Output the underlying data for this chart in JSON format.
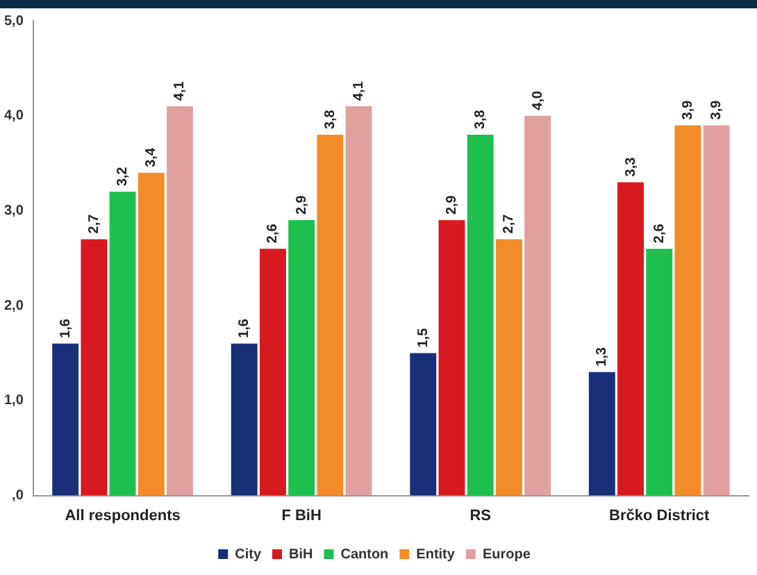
{
  "chart_data": {
    "type": "bar",
    "categories": [
      "All respondents",
      "F BiH",
      "RS",
      "Brčko District"
    ],
    "series": [
      {
        "name": "City",
        "color": "#1a2f7a",
        "values": [
          1.6,
          1.6,
          1.5,
          1.3
        ],
        "value_labels": [
          "1,6",
          "1,6",
          "1,5",
          "1,3"
        ]
      },
      {
        "name": "BiH",
        "color": "#d71920",
        "values": [
          2.7,
          2.6,
          2.9,
          3.3
        ],
        "value_labels": [
          "2,7",
          "2,6",
          "2,9",
          "3,3"
        ]
      },
      {
        "name": "Canton",
        "color": "#1fbf4f",
        "values": [
          3.2,
          2.9,
          3.8,
          2.6
        ],
        "value_labels": [
          "3,2",
          "2,9",
          "3,8",
          "2,6"
        ]
      },
      {
        "name": "Entity",
        "color": "#f28c28",
        "values": [
          3.4,
          3.8,
          2.7,
          3.9
        ],
        "value_labels": [
          "3,4",
          "3,8",
          "2,7",
          "3,9"
        ]
      },
      {
        "name": "Europe",
        "color": "#e0a0a0",
        "values": [
          4.1,
          4.1,
          4.0,
          3.9
        ],
        "value_labels": [
          "4,1",
          "4,1",
          "4,0",
          "3,9"
        ]
      }
    ],
    "ylim": [
      0,
      5
    ],
    "yticks": [
      {
        "value": 0,
        "label": ",0"
      },
      {
        "value": 1,
        "label": "1,0"
      },
      {
        "value": 2,
        "label": "2,0"
      },
      {
        "value": 3,
        "label": "3,0"
      },
      {
        "value": 4,
        "label": "4,0"
      },
      {
        "value": 5,
        "label": "5,0"
      }
    ],
    "grid": false,
    "legend": "bottom"
  }
}
